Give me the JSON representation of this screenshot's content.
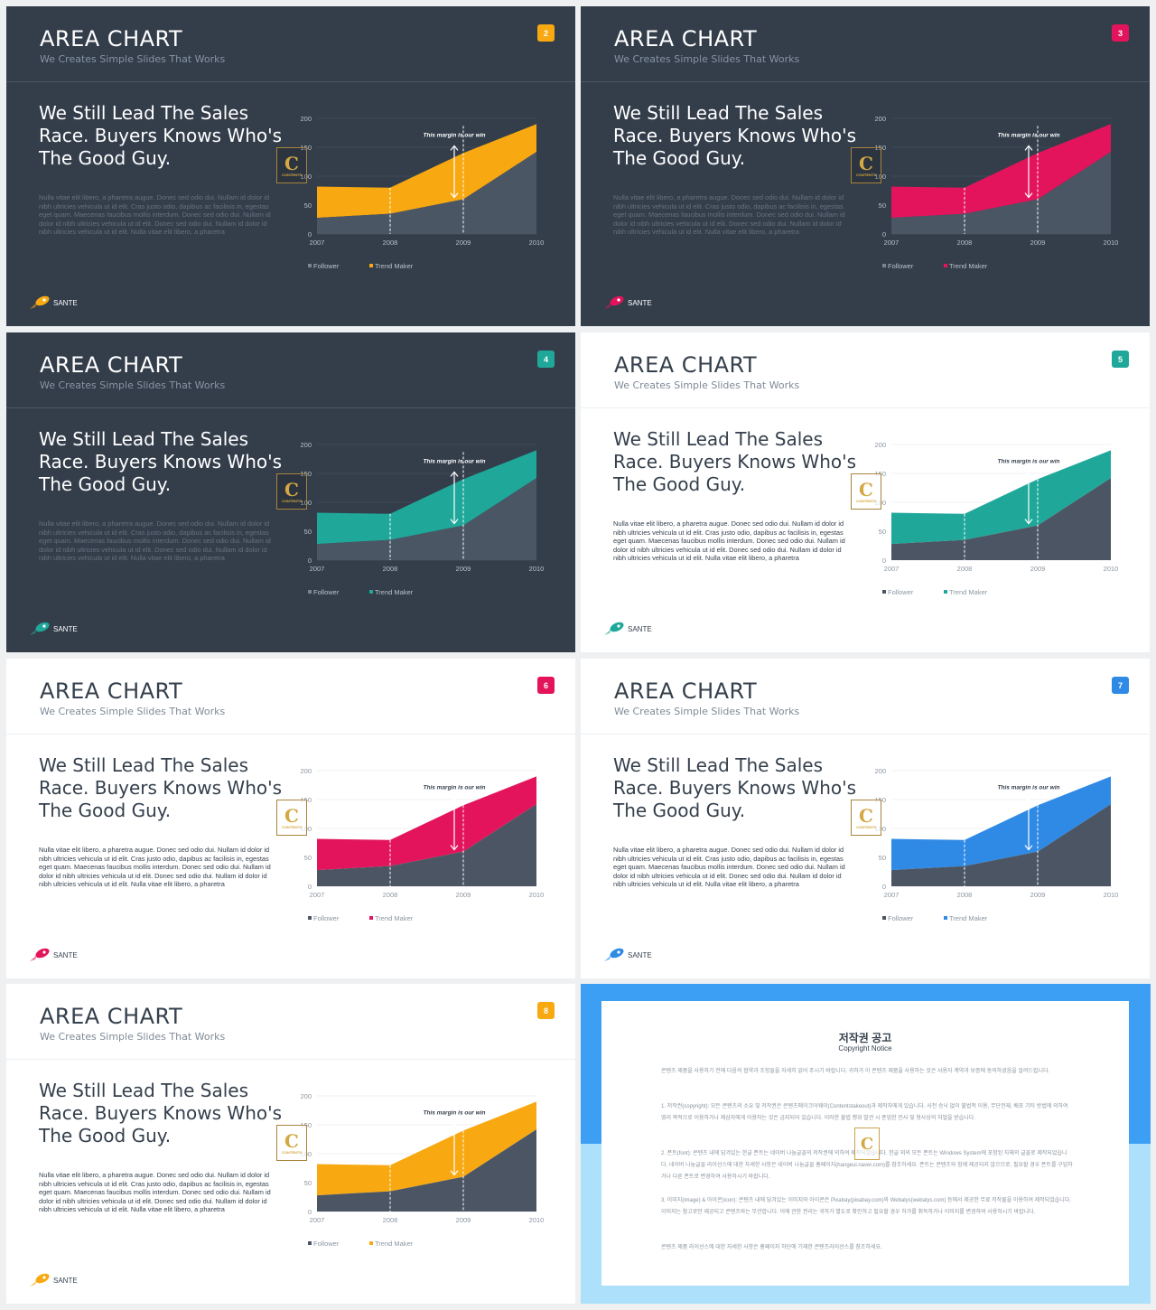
{
  "slides": [
    {
      "title": "AREA CHART",
      "subtitle": "We Creates Simple Slides That Works",
      "number": "2",
      "theme": "dark",
      "accent": "#f8a911"
    },
    {
      "title": "AREA CHART",
      "subtitle": "We Creates Simple Slides That Works",
      "number": "3",
      "theme": "dark",
      "accent": "#e3145b"
    },
    {
      "title": "AREA CHART",
      "subtitle": "We Creates Simple Slides That Works",
      "number": "4",
      "theme": "dark",
      "accent": "#1fa89a"
    },
    {
      "title": "AREA CHART",
      "subtitle": "We Creates Simple Slides That Works",
      "number": "5",
      "theme": "light",
      "accent": "#1fa89a"
    },
    {
      "title": "AREA CHART",
      "subtitle": "We Creates Simple Slides That Works",
      "number": "6",
      "theme": "light",
      "accent": "#e3145b"
    },
    {
      "title": "AREA CHART",
      "subtitle": "We Creates Simple Slides That Works",
      "number": "7",
      "theme": "light",
      "accent": "#2f8ae5"
    },
    {
      "title": "AREA CHART",
      "subtitle": "We Creates Simple Slides That Works",
      "number": "8",
      "theme": "light",
      "accent": "#f8a911"
    }
  ],
  "headline": "We Still Lead The Sales Race. Buyers Knows Who's The Good Guy.",
  "body": "Nulla vitae elit libero, a pharetra augue. Donec sed odio dui. Nullam id dolor id nibh ultricies vehicula ut id elit. Cras justo odio, dapibus ac facilisis in, egestas eget quam. Maecenas faucibus mollis interdum. Donec sed odio dui. Nullam id dolor id nibh ultricies vehicula ut id elit. Donec sed odio dui. Nullam id dolor id nibh ultricies vehicula ut id elit. Nulla vitae elit libero, a pharetra",
  "brand": "SANTE",
  "watermark": {
    "letter": "C",
    "text": "CONTENTS"
  },
  "chart_data": {
    "type": "area",
    "categories": [
      "2007",
      "2008",
      "2009",
      "2010"
    ],
    "series": [
      {
        "name": "Follower",
        "values": [
          28,
          35,
          60,
          142
        ],
        "color": "#4b5563"
      },
      {
        "name": "Trend Maker",
        "values": [
          82,
          80,
          140,
          190
        ],
        "color": "accent"
      }
    ],
    "ylim": [
      0,
      200
    ],
    "yticks": [
      "0",
      "50",
      "100",
      "150",
      "200"
    ],
    "annotation": "This margin is our win",
    "legend": "bottom-left",
    "grid": true
  },
  "notice": {
    "title": "저작권 공고",
    "subtitle": "Copyright Notice",
    "paragraphs": [
      "콘텐츠 제품을 사용하기 전에 다음의 협약과 조항들을 자세히 읽어 주시기 바랍니다. 귀하가 이 콘텐츠 제품을 사용하는 것은 사용자 계약과 보증에 동의하셨음을 알려드립니다.",
      "1. 저작권(copyright): 모든 콘텐츠의 소유 및 저작권은 콘텐츠메이크어웨이(Contentstakeout)과 제작자에게 있습니다. 사전 승낙 없이 불법적 이용, 무단전재, 배포 기타 방법에 의하여 영리 목적으로 이용하거나 제삼자에게 이용하는 것은 금지되어 있습니다. 이러한 불법 행위 발견 시 준엄한 민사 및 형사상의 처벌을 받습니다.",
      "2. 폰트(font): 콘텐츠 내에 담겨있는 한글 폰트는 네이버 나눔글꼴의 저작권에 의하여 제작되었습니다. 한글 외의 모든 폰트는 Windows System에 포함된 자체의 글꼴로 제작되었습니다. 네이버 나눔글꼴 라이선스에 대한 자세한 사항은 네이버 나눔글꼴 홈페이지(hangeul.naver.com)를 참조하세요. 폰트는 콘텐츠와 함께 제공되지 않으므로, 필요할 경우 폰트를 구입하거나 다른 폰트로 변경하여 사용하시기 바랍니다.",
      "3. 이미지(image) & 아이콘(icon): 콘텐츠 내에 담겨있는 이미지와 아이콘은 Pixabay(pixabay.com)와 Webalys(webalys.com) 등에서 제공한 무료 저작물을 이용하여 제작되었습니다. 이미지는 참고로만 제공되고 콘텐츠와는 무관합니다. 이에 관한 권리는 귀하가 별도로 확인하고 필요할 경우 허가를 취득하거나 이미지를 변경하여 사용하시기 바랍니다.",
      "콘텐츠 제품 라이선스에 대한 자세한 사항은 홈페이지 하단에 기재한 콘텐츠라이선스를 참조하세요."
    ]
  }
}
